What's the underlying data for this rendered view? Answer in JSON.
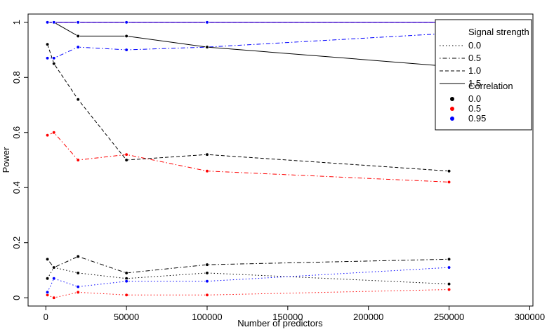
{
  "chart_data": {
    "type": "line",
    "xlabel": "Number of predictors",
    "ylabel": "Power",
    "xlim": [
      -11000,
      302000
    ],
    "ylim": [
      -0.03,
      1.03
    ],
    "x_ticks": [
      0,
      50000,
      100000,
      150000,
      200000,
      250000,
      300000
    ],
    "x_tick_labels": [
      "0",
      "50000",
      "100000",
      "150000",
      "200000",
      "250000",
      "300000"
    ],
    "y_ticks": [
      0,
      0.2,
      0.4,
      0.6,
      0.8,
      1
    ],
    "y_tick_labels": [
      "0",
      "0.2",
      "0.4",
      "0.6",
      "0.8",
      "1"
    ],
    "grid": false,
    "legend": {
      "position": "top-right",
      "signal_title": "Signal strength",
      "signal_entries": [
        {
          "label": "0.0",
          "linestyle": "dotted"
        },
        {
          "label": "0.5",
          "linestyle": "dotdash"
        },
        {
          "label": "1.0",
          "linestyle": "dashed"
        },
        {
          "label": "1.5",
          "linestyle": "solid"
        }
      ],
      "corr_title": "Correlation",
      "corr_entries": [
        {
          "label": "0.0",
          "color": "#000000"
        },
        {
          "label": "0.5",
          "color": "#ff0000"
        },
        {
          "label": "0.95",
          "color": "#0000ff"
        }
      ]
    },
    "series": [
      {
        "signal": "0.0",
        "correlation": "0.0",
        "color": "#000000",
        "linestyle": "dotted",
        "x": [
          1000,
          5000,
          20000,
          50000,
          100000,
          250000
        ],
        "y": [
          0.07,
          0.11,
          0.09,
          0.07,
          0.09,
          0.05
        ]
      },
      {
        "signal": "0.0",
        "correlation": "0.5",
        "color": "#ff0000",
        "linestyle": "dotted",
        "x": [
          1000,
          5000,
          20000,
          50000,
          100000,
          250000
        ],
        "y": [
          0.01,
          0.0,
          0.02,
          0.01,
          0.01,
          0.03
        ]
      },
      {
        "signal": "0.0",
        "correlation": "0.95",
        "color": "#0000ff",
        "linestyle": "dotted",
        "x": [
          1000,
          5000,
          20000,
          50000,
          100000,
          250000
        ],
        "y": [
          0.02,
          0.07,
          0.04,
          0.06,
          0.06,
          0.11
        ]
      },
      {
        "signal": "0.5",
        "correlation": "0.0",
        "color": "#000000",
        "linestyle": "dotdash",
        "x": [
          1000,
          5000,
          20000,
          50000,
          100000,
          250000
        ],
        "y": [
          0.14,
          0.11,
          0.15,
          0.09,
          0.12,
          0.14
        ]
      },
      {
        "signal": "0.5",
        "correlation": "0.5",
        "color": "#ff0000",
        "linestyle": "dotdash",
        "x": [
          1000,
          5000,
          20000,
          50000,
          100000,
          250000
        ],
        "y": [
          0.59,
          0.6,
          0.5,
          0.52,
          0.46,
          0.42
        ]
      },
      {
        "signal": "0.5",
        "correlation": "0.95",
        "color": "#0000ff",
        "linestyle": "dotdash",
        "x": [
          1000,
          5000,
          20000,
          50000,
          100000,
          250000
        ],
        "y": [
          0.87,
          0.87,
          0.91,
          0.9,
          0.91,
          0.96
        ]
      },
      {
        "signal": "1.0",
        "correlation": "0.0",
        "color": "#000000",
        "linestyle": "dashed",
        "x": [
          1000,
          5000,
          20000,
          50000,
          100000,
          250000
        ],
        "y": [
          0.92,
          0.85,
          0.72,
          0.5,
          0.52,
          0.46
        ]
      },
      {
        "signal": "1.0",
        "correlation": "0.5",
        "color": "#ff0000",
        "linestyle": "dashed",
        "x": [
          1000,
          5000,
          20000,
          50000,
          100000,
          250000
        ],
        "y": [
          1.0,
          1.0,
          1.0,
          1.0,
          1.0,
          1.0
        ]
      },
      {
        "signal": "1.0",
        "correlation": "0.95",
        "color": "#0000ff",
        "linestyle": "dashed",
        "x": [
          1000,
          5000,
          20000,
          50000,
          100000,
          250000
        ],
        "y": [
          1.0,
          1.0,
          1.0,
          1.0,
          1.0,
          1.0
        ]
      },
      {
        "signal": "1.5",
        "correlation": "0.0",
        "color": "#000000",
        "linestyle": "solid",
        "x": [
          1000,
          5000,
          20000,
          50000,
          100000,
          250000
        ],
        "y": [
          1.0,
          1.0,
          0.95,
          0.95,
          0.91,
          0.84
        ]
      },
      {
        "signal": "1.5",
        "correlation": "0.5",
        "color": "#ff0000",
        "linestyle": "solid",
        "x": [
          1000,
          5000,
          20000,
          50000,
          100000,
          250000
        ],
        "y": [
          1.0,
          1.0,
          1.0,
          1.0,
          1.0,
          1.0
        ]
      },
      {
        "signal": "1.5",
        "correlation": "0.95",
        "color": "#0000ff",
        "linestyle": "solid",
        "x": [
          1000,
          5000,
          20000,
          50000,
          100000,
          250000
        ],
        "y": [
          1.0,
          1.0,
          1.0,
          1.0,
          1.0,
          1.0
        ]
      }
    ]
  }
}
